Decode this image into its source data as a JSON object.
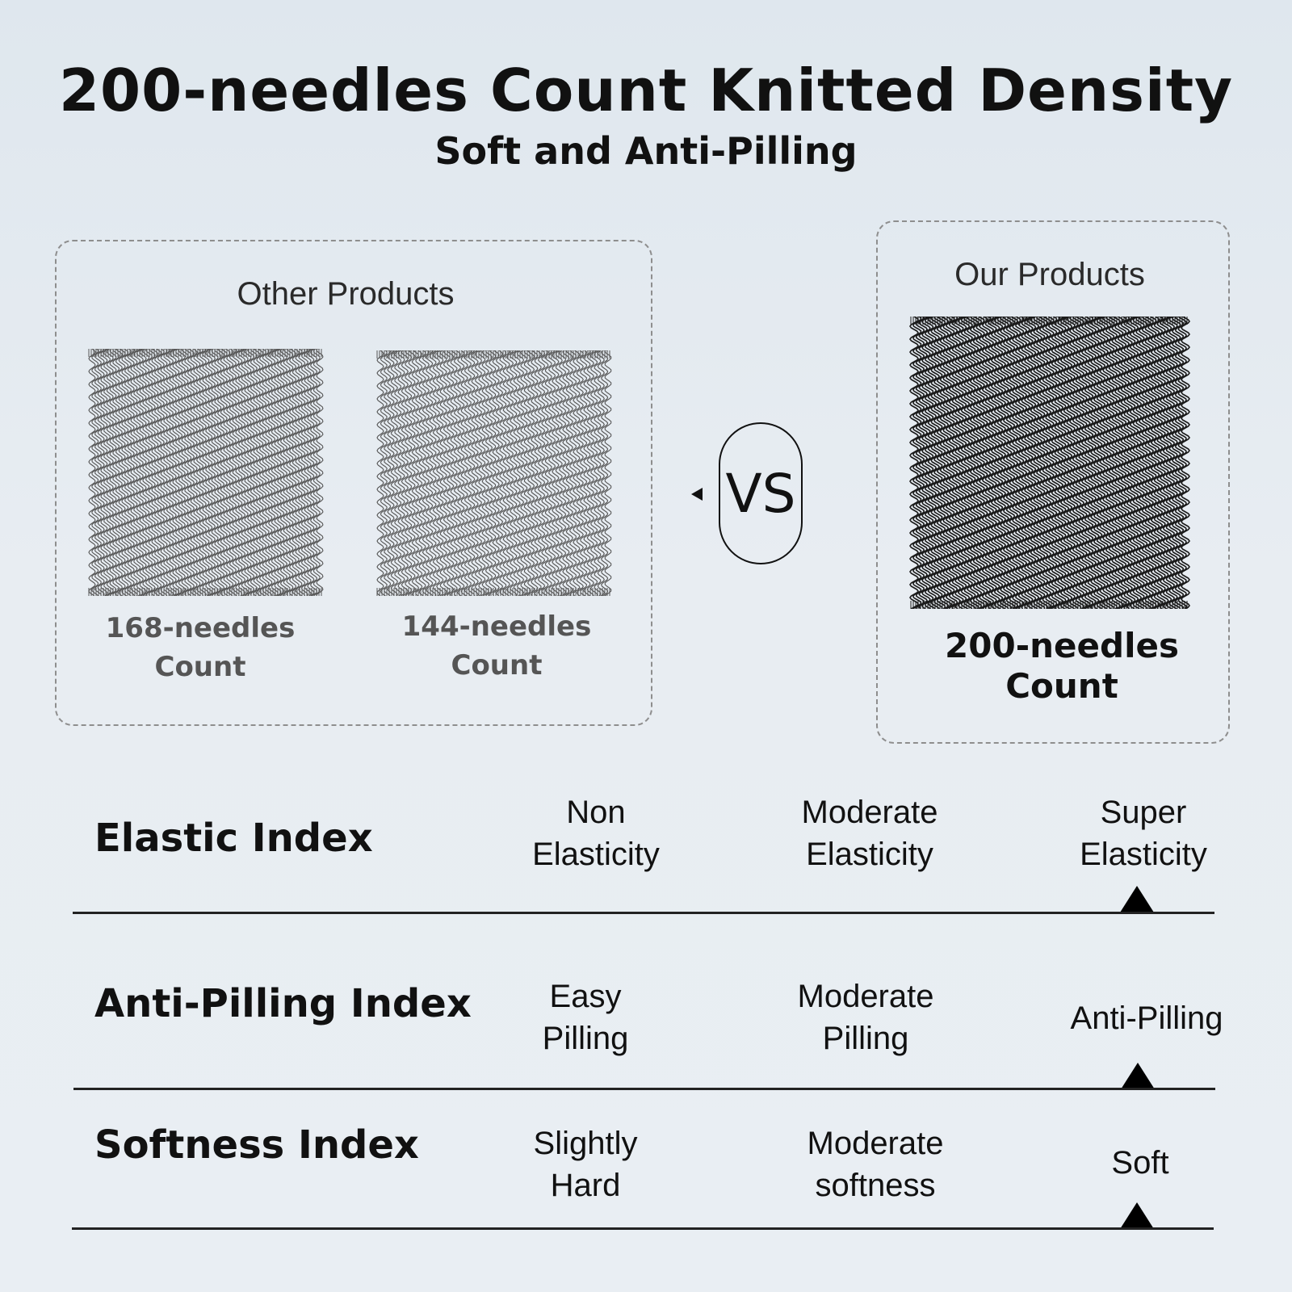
{
  "header": {
    "title": "200-needles Count Knitted Density",
    "subtitle": "Soft and Anti-Pilling"
  },
  "comparison": {
    "other": {
      "label": "Other Products",
      "items": [
        {
          "line1": "168-needles",
          "line2": "Count",
          "needle_count": 168
        },
        {
          "line1": "144-needles",
          "line2": "Count",
          "needle_count": 144
        }
      ]
    },
    "vs_label": "VS",
    "ours": {
      "label": "Our Products",
      "line1": "200-needles",
      "line2": "Count",
      "needle_count": 200
    }
  },
  "indices": [
    {
      "label": "Elastic Index",
      "levels": [
        {
          "line1": "Non",
          "line2": "Elasticity"
        },
        {
          "line1": "Moderate",
          "line2": "Elasticity"
        },
        {
          "line1": "Super",
          "line2": "Elasticity"
        }
      ],
      "selected_level": 3
    },
    {
      "label": "Anti-Pilling Index",
      "levels": [
        {
          "line1": "Easy",
          "line2": "Pilling"
        },
        {
          "line1": "Moderate",
          "line2": "Pilling"
        },
        {
          "line1": "Anti-Pilling",
          "line2": ""
        }
      ],
      "selected_level": 3
    },
    {
      "label": "Softness Index",
      "levels": [
        {
          "line1": "Slightly",
          "line2": "Hard"
        },
        {
          "line1": "Moderate",
          "line2": "softness"
        },
        {
          "line1": "Soft",
          "line2": ""
        }
      ],
      "selected_level": 3
    }
  ],
  "colors": {
    "text": "#111111",
    "muted_text": "#555555",
    "fabric_light": "#555555",
    "fabric_dark": "#1a1a1a"
  }
}
